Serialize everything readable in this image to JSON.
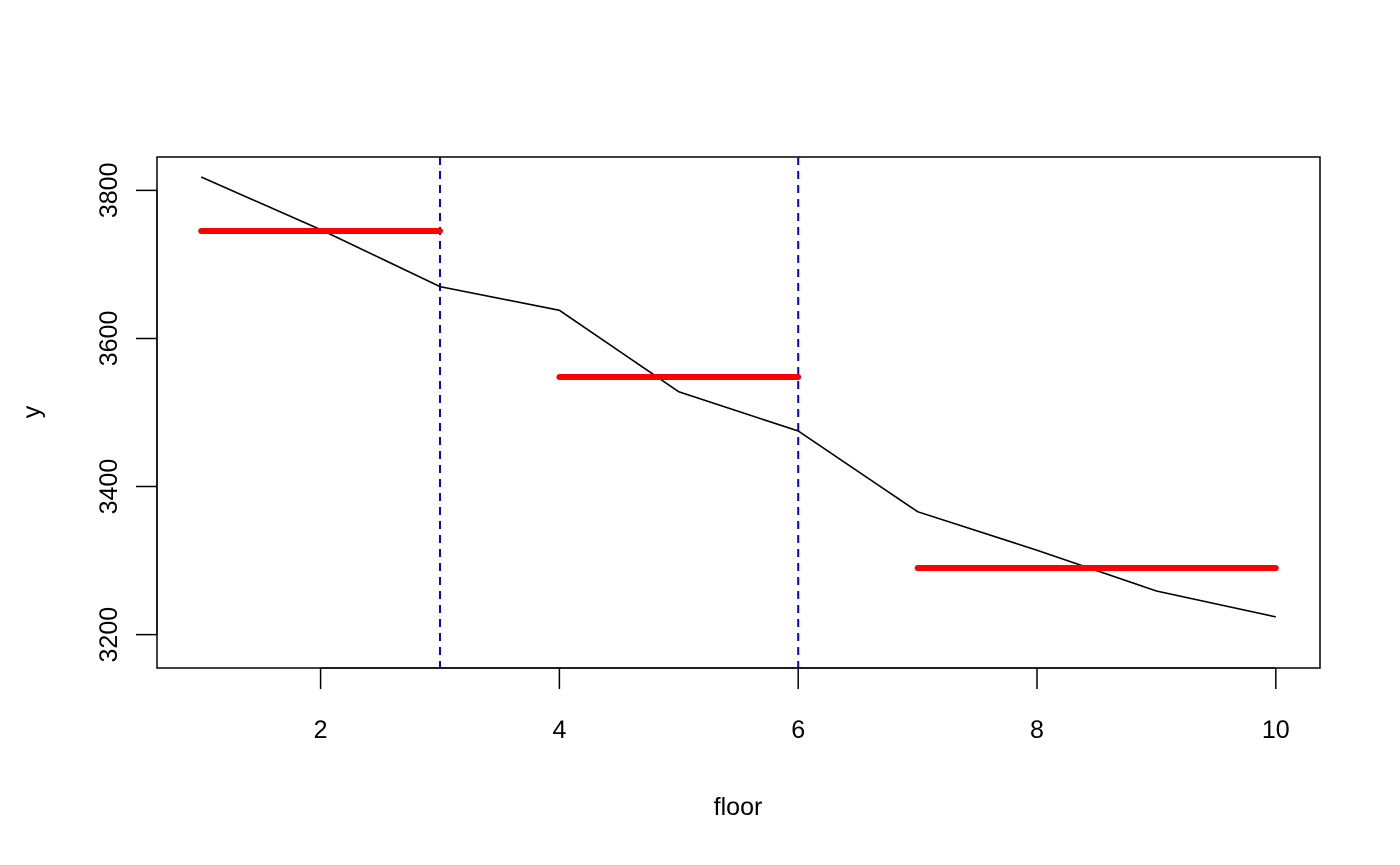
{
  "chart_data": {
    "type": "line",
    "title": "",
    "xlabel": "floor",
    "ylabel": "y",
    "xlim": [
      0.63,
      10.37
    ],
    "ylim": [
      3155,
      3845
    ],
    "x_ticks": [
      2,
      4,
      6,
      8,
      10
    ],
    "y_ticks": [
      3200,
      3400,
      3600,
      3800
    ],
    "grid": false,
    "series": [
      {
        "style": "line",
        "color": "#000000",
        "x": [
          1,
          2,
          3,
          4,
          5,
          6,
          7,
          8,
          9,
          10
        ],
        "y": [
          3818,
          3747,
          3670,
          3638,
          3528,
          3475,
          3366,
          3314,
          3259,
          3224
        ]
      }
    ],
    "segments": [
      {
        "x_start": 1,
        "x_end": 3,
        "y": 3745,
        "color": "#ff0000"
      },
      {
        "x_start": 4,
        "x_end": 6,
        "y": 3548,
        "color": "#ff0000"
      },
      {
        "x_start": 7,
        "x_end": 10,
        "y": 3290,
        "color": "#ff0000"
      }
    ],
    "vlines": [
      {
        "x": 3,
        "color": "#0000ff",
        "style": "dashed"
      },
      {
        "x": 6,
        "color": "#0000ff",
        "style": "dashed"
      }
    ]
  }
}
